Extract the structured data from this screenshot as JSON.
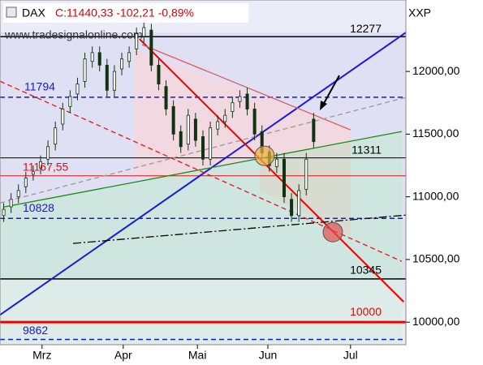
{
  "chart_data": {
    "type": "candlestick",
    "title": "DAX",
    "subtitle": "C:11440,33 -102,21 -0,89%",
    "source": "www.tradesignalonline.com",
    "axis_label": "XXP",
    "x": [
      1,
      3,
      5,
      7,
      9,
      11,
      13,
      15,
      17,
      19,
      21,
      23,
      25,
      27,
      29,
      31,
      33,
      35,
      37,
      39,
      41,
      43,
      45,
      47,
      49,
      51,
      53,
      55,
      57,
      59,
      61,
      63,
      65,
      67,
      69,
      71,
      73,
      75,
      77,
      79,
      81,
      83,
      85
    ],
    "open": [
      10850,
      10920,
      11000,
      11080,
      11180,
      11230,
      11300,
      11420,
      11580,
      11720,
      11820,
      11920,
      12080,
      12150,
      12050,
      11850,
      12020,
      12080,
      12180,
      12280,
      12330,
      12050,
      11880,
      11720,
      11520,
      11420,
      11620,
      11480,
      11300,
      11540,
      11600,
      11680,
      11760,
      11820,
      11700,
      11520,
      11360,
      11240,
      11300,
      10980,
      10850,
      11060,
      11620
    ],
    "high": [
      10950,
      11030,
      11100,
      11200,
      11250,
      11330,
      11450,
      11600,
      11750,
      11850,
      11950,
      12150,
      12200,
      12200,
      12100,
      12050,
      12150,
      12200,
      12350,
      12400,
      12380,
      12100,
      11930,
      11770,
      11570,
      11700,
      11670,
      11530,
      11600,
      11650,
      11700,
      11800,
      11850,
      11870,
      11750,
      11570,
      11410,
      11350,
      11350,
      11030,
      11100,
      11350,
      11670
    ],
    "low": [
      10800,
      10870,
      10950,
      11030,
      11130,
      11180,
      11250,
      11370,
      11530,
      11670,
      11770,
      11870,
      12030,
      12000,
      11800,
      11800,
      11970,
      12030,
      12130,
      12230,
      12000,
      11850,
      11650,
      11450,
      11350,
      11370,
      11400,
      11250,
      11250,
      11490,
      11550,
      11630,
      11710,
      11650,
      11450,
      11300,
      11200,
      11190,
      10950,
      10800,
      10800,
      11010,
      11390
    ],
    "close": [
      10900,
      10980,
      11050,
      11150,
      11200,
      11280,
      11400,
      11550,
      11700,
      11800,
      11900,
      12100,
      12150,
      12050,
      11850,
      12000,
      12100,
      12150,
      12300,
      12350,
      12050,
      11900,
      11700,
      11500,
      11400,
      11650,
      11450,
      11300,
      11550,
      11600,
      11650,
      11750,
      11800,
      11700,
      11500,
      11350,
      11250,
      11300,
      11000,
      10850,
      11050,
      11300,
      11440
    ],
    "xlim": [
      0,
      110
    ],
    "xticks": [
      {
        "value": 11.4,
        "label": "Mrz"
      },
      {
        "value": 33.4,
        "label": "Apr"
      },
      {
        "value": 53.5,
        "label": "Mai"
      },
      {
        "value": 72.6,
        "label": "Jun"
      },
      {
        "value": 95,
        "label": "Jul"
      }
    ],
    "ylim": [
      9820,
      12570
    ],
    "yticks": [
      {
        "value": 12000,
        "label": "12000,00"
      },
      {
        "value": 11500,
        "label": "11500,00"
      },
      {
        "value": 11000,
        "label": "11000,00"
      },
      {
        "value": 10500,
        "label": "10500,00"
      },
      {
        "value": 10000,
        "label": "10000,00"
      }
    ],
    "levels": [
      {
        "value": 12277,
        "color": "#000000"
      },
      {
        "value": 11794,
        "color": "#1a1acc"
      },
      {
        "value": 11311,
        "color": "#000000"
      },
      {
        "value": 11167.55,
        "label": "11167,55",
        "color": "#dd1111"
      },
      {
        "value": 10828,
        "color": "#1a1acc"
      },
      {
        "value": 10345,
        "color": "#000000"
      },
      {
        "value": 10000,
        "color": "#ee0000"
      },
      {
        "value": 9862,
        "color": "#1a1acc"
      }
    ],
    "trendlines": [
      {
        "x": [
          0,
          110
        ],
        "values": [
          10058,
          12311
        ],
        "color": "#1a1add"
      },
      {
        "x": [
          37.8,
          109.4
        ],
        "values": [
          12259,
          10162
        ],
        "color": "#ee0000"
      },
      {
        "x": [
          0,
          108.9
        ],
        "values": [
          11922,
          10485
        ],
        "color": "#ee1111"
      },
      {
        "x": [
          1.1,
          108.9
        ],
        "values": [
          10919,
          11521
        ],
        "color": "#1a8a1a"
      },
      {
        "x": [
          38.5,
          95
        ],
        "values": [
          12214,
          11534
        ],
        "color": "#ee5555"
      },
      {
        "x": [
          0,
          110
        ],
        "values": [
          10951,
          11793
        ],
        "color": "#999999"
      },
      {
        "x": [
          19.8,
          110
        ],
        "values": [
          10628,
          10854
        ],
        "color": "#000000"
      }
    ],
    "markers": [
      {
        "x": 71.7,
        "value": 11327,
        "color": "#f0b040"
      },
      {
        "x": 90.2,
        "value": 10718,
        "color": "#e05050"
      }
    ]
  }
}
